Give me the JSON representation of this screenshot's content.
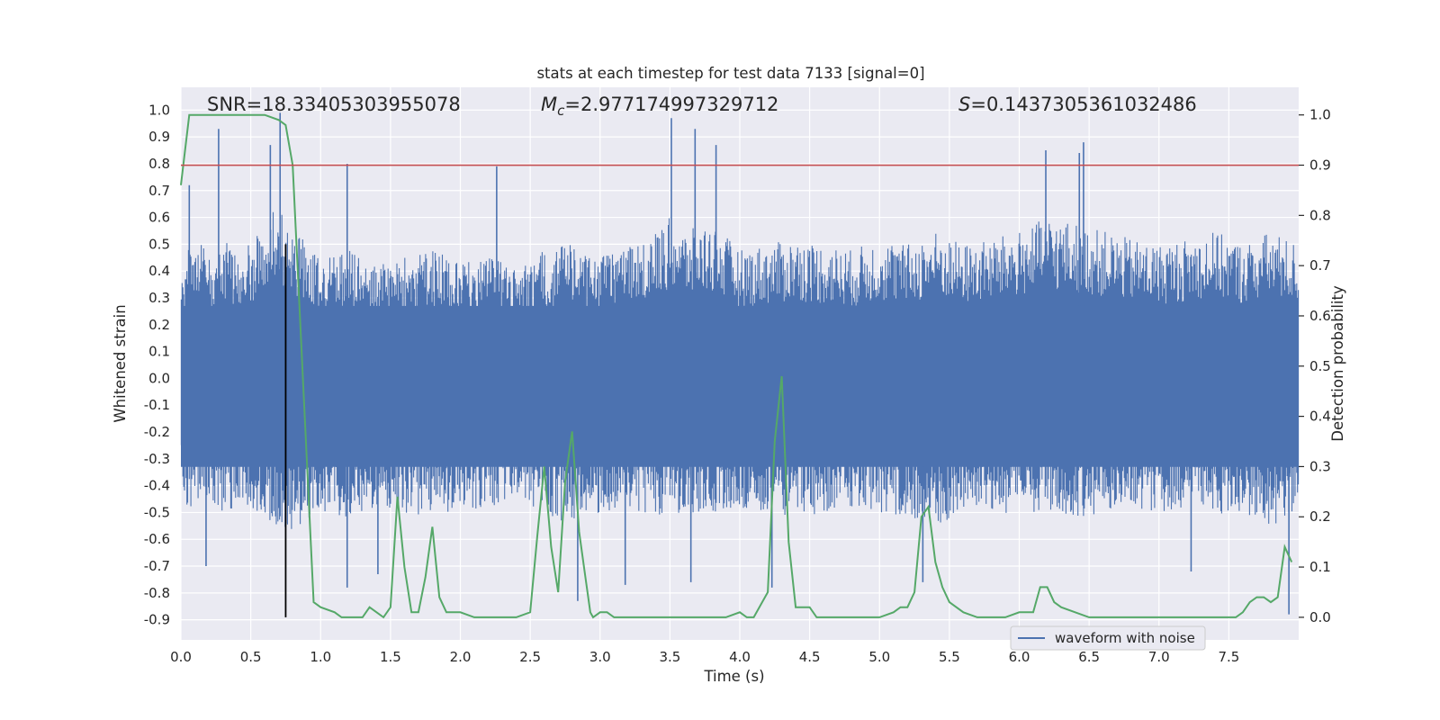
{
  "chart_data": {
    "type": "line",
    "title": "stats at each timestep for test data 7133 [signal=0]",
    "xlabel": "Time (s)",
    "ylabel": "Whitened strain",
    "ylabel_right": "Detection probability",
    "xlim": [
      0.0,
      8.0
    ],
    "ylim": [
      -0.975,
      1.085
    ],
    "ylim_right": [
      -0.045,
      1.055
    ],
    "x_ticks": [
      "0.0",
      "0.5",
      "1.0",
      "1.5",
      "2.0",
      "2.5",
      "3.0",
      "3.5",
      "4.0",
      "4.5",
      "5.0",
      "5.5",
      "6.0",
      "6.5",
      "7.0",
      "7.5"
    ],
    "x_tick_values": [
      0.0,
      0.5,
      1.0,
      1.5,
      2.0,
      2.5,
      3.0,
      3.5,
      4.0,
      4.5,
      5.0,
      5.5,
      6.0,
      6.5,
      7.0,
      7.5
    ],
    "y_ticks": [
      "1.0",
      "0.9",
      "0.8",
      "0.7",
      "0.6",
      "0.5",
      "0.4",
      "0.3",
      "0.2",
      "0.1",
      "0.0",
      "-0.1",
      "-0.2",
      "-0.3",
      "-0.4",
      "-0.5",
      "-0.6",
      "-0.7",
      "-0.8",
      "-0.9"
    ],
    "y_tick_values": [
      1.0,
      0.9,
      0.8,
      0.7,
      0.6,
      0.5,
      0.4,
      0.3,
      0.2,
      0.1,
      0.0,
      -0.1,
      -0.2,
      -0.3,
      -0.4,
      -0.5,
      -0.6,
      -0.7,
      -0.8,
      -0.9
    ],
    "y_right_ticks": [
      "1.0",
      "0.9",
      "0.8",
      "0.7",
      "0.6",
      "0.5",
      "0.4",
      "0.3",
      "0.2",
      "0.1",
      "0.0"
    ],
    "y_right_tick_values": [
      1.0,
      0.9,
      0.8,
      0.7,
      0.6,
      0.5,
      0.4,
      0.3,
      0.2,
      0.1,
      0.0
    ],
    "annotations": {
      "snr": "SNR=18.33405303955078",
      "mc_symbol": "M",
      "mc_subscript": "c",
      "mc_value": "=2.977174997329712",
      "s_symbol": "S",
      "s_value": "=0.1437305361032486"
    },
    "legend": {
      "label": "waveform with noise",
      "placement": "lower-right"
    },
    "threshold_right": 0.9,
    "marker_x": 0.75,
    "series": [
      {
        "name": "waveform with noise",
        "axis": "left",
        "color": "#4c72b0",
        "envelope": {
          "x": [
            0.0,
            0.1,
            0.2,
            0.3,
            0.4,
            0.5,
            0.6,
            0.7,
            0.8,
            0.9,
            1.0,
            1.2,
            1.4,
            1.6,
            1.8,
            2.0,
            2.2,
            2.4,
            2.6,
            2.8,
            3.0,
            3.2,
            3.4,
            3.5,
            3.6,
            3.8,
            4.0,
            4.2,
            4.4,
            4.6,
            4.8,
            5.0,
            5.2,
            5.4,
            5.6,
            5.8,
            6.0,
            6.2,
            6.4,
            6.6,
            6.8,
            7.0,
            7.2,
            7.4,
            7.6,
            7.8,
            8.0
          ],
          "upper": [
            0.4,
            0.55,
            0.45,
            0.55,
            0.48,
            0.5,
            0.6,
            0.65,
            0.58,
            0.5,
            0.45,
            0.48,
            0.42,
            0.45,
            0.48,
            0.44,
            0.46,
            0.4,
            0.48,
            0.5,
            0.45,
            0.5,
            0.55,
            0.6,
            0.55,
            0.58,
            0.48,
            0.5,
            0.52,
            0.5,
            0.48,
            0.52,
            0.5,
            0.55,
            0.5,
            0.52,
            0.55,
            0.6,
            0.58,
            0.55,
            0.52,
            0.5,
            0.52,
            0.55,
            0.5,
            0.55,
            0.5
          ],
          "lower": [
            -0.45,
            -0.5,
            -0.45,
            -0.5,
            -0.48,
            -0.5,
            -0.52,
            -0.55,
            -0.6,
            -0.55,
            -0.5,
            -0.52,
            -0.48,
            -0.5,
            -0.52,
            -0.5,
            -0.48,
            -0.45,
            -0.5,
            -0.55,
            -0.5,
            -0.48,
            -0.52,
            -0.5,
            -0.52,
            -0.5,
            -0.48,
            -0.5,
            -0.52,
            -0.5,
            -0.48,
            -0.5,
            -0.52,
            -0.55,
            -0.52,
            -0.5,
            -0.52,
            -0.5,
            -0.52,
            -0.5,
            -0.48,
            -0.5,
            -0.48,
            -0.5,
            -0.52,
            -0.55,
            -0.5
          ]
        },
        "spikes": [
          {
            "x": 0.06,
            "y": 0.72
          },
          {
            "x": 0.27,
            "y": 0.93
          },
          {
            "x": 0.64,
            "y": 0.87
          },
          {
            "x": 0.71,
            "y": 0.99
          },
          {
            "x": 1.19,
            "y": 0.8
          },
          {
            "x": 2.26,
            "y": 0.79
          },
          {
            "x": 3.51,
            "y": 0.97
          },
          {
            "x": 3.68,
            "y": 0.93
          },
          {
            "x": 3.83,
            "y": 0.87
          },
          {
            "x": 6.19,
            "y": 0.85
          },
          {
            "x": 6.43,
            "y": 0.84
          },
          {
            "x": 6.46,
            "y": 0.88
          },
          {
            "x": 0.18,
            "y": -0.7
          },
          {
            "x": 1.19,
            "y": -0.78
          },
          {
            "x": 1.41,
            "y": -0.73
          },
          {
            "x": 2.84,
            "y": -0.83
          },
          {
            "x": 3.18,
            "y": -0.77
          },
          {
            "x": 3.65,
            "y": -0.76
          },
          {
            "x": 4.23,
            "y": -0.78
          },
          {
            "x": 5.31,
            "y": -0.76
          },
          {
            "x": 7.23,
            "y": -0.72
          },
          {
            "x": 7.93,
            "y": -0.88
          }
        ]
      },
      {
        "name": "",
        "axis": "right",
        "color": "#55a868",
        "x": [
          0.0,
          0.06,
          0.12,
          0.2,
          0.3,
          0.4,
          0.5,
          0.6,
          0.7,
          0.75,
          0.8,
          0.95,
          1.0,
          1.1,
          1.15,
          1.2,
          1.25,
          1.3,
          1.35,
          1.4,
          1.45,
          1.5,
          1.55,
          1.6,
          1.65,
          1.7,
          1.75,
          1.8,
          1.85,
          1.9,
          1.95,
          2.0,
          2.1,
          2.2,
          2.3,
          2.4,
          2.5,
          2.55,
          2.6,
          2.65,
          2.7,
          2.75,
          2.8,
          2.85,
          2.9,
          2.93,
          2.95,
          3.0,
          3.05,
          3.1,
          3.2,
          3.3,
          3.4,
          3.5,
          3.6,
          3.7,
          3.8,
          3.9,
          4.0,
          4.05,
          4.1,
          4.2,
          4.25,
          4.3,
          4.35,
          4.4,
          4.45,
          4.5,
          4.55,
          4.6,
          4.7,
          4.8,
          4.9,
          5.0,
          5.1,
          5.15,
          5.2,
          5.25,
          5.3,
          5.35,
          5.4,
          5.45,
          5.5,
          5.6,
          5.7,
          5.8,
          5.9,
          6.0,
          6.05,
          6.1,
          6.15,
          6.2,
          6.25,
          6.3,
          6.4,
          6.5,
          6.6,
          6.7,
          6.8,
          6.9,
          7.0,
          7.1,
          7.2,
          7.3,
          7.4,
          7.5,
          7.55,
          7.6,
          7.65,
          7.7,
          7.75,
          7.8,
          7.85,
          7.9,
          7.95
        ],
        "y": [
          0.86,
          1.0,
          1.0,
          1.0,
          1.0,
          1.0,
          1.0,
          1.0,
          0.99,
          0.98,
          0.9,
          0.03,
          0.02,
          0.01,
          0.0,
          0.0,
          0.0,
          0.0,
          0.02,
          0.01,
          0.0,
          0.02,
          0.24,
          0.1,
          0.01,
          0.01,
          0.08,
          0.18,
          0.04,
          0.01,
          0.01,
          0.01,
          0.0,
          0.0,
          0.0,
          0.0,
          0.01,
          0.16,
          0.3,
          0.14,
          0.05,
          0.27,
          0.37,
          0.17,
          0.07,
          0.01,
          0.0,
          0.01,
          0.01,
          0.0,
          0.0,
          0.0,
          0.0,
          0.0,
          0.0,
          0.0,
          0.0,
          0.0,
          0.01,
          0.0,
          0.0,
          0.05,
          0.35,
          0.48,
          0.15,
          0.02,
          0.02,
          0.02,
          0.0,
          0.0,
          0.0,
          0.0,
          0.0,
          0.0,
          0.01,
          0.02,
          0.02,
          0.05,
          0.2,
          0.22,
          0.11,
          0.06,
          0.03,
          0.01,
          0.0,
          0.0,
          0.0,
          0.01,
          0.01,
          0.01,
          0.06,
          0.06,
          0.03,
          0.02,
          0.01,
          0.0,
          0.0,
          0.0,
          0.0,
          0.0,
          0.0,
          0.0,
          0.0,
          0.0,
          0.0,
          0.0,
          0.0,
          0.01,
          0.03,
          0.04,
          0.04,
          0.03,
          0.04,
          0.14,
          0.11
        ]
      }
    ],
    "colors": {
      "plot_bg": "#eaeaf2",
      "grid": "#ffffff",
      "threshold": "#c44e52",
      "marker": "#000000"
    }
  }
}
